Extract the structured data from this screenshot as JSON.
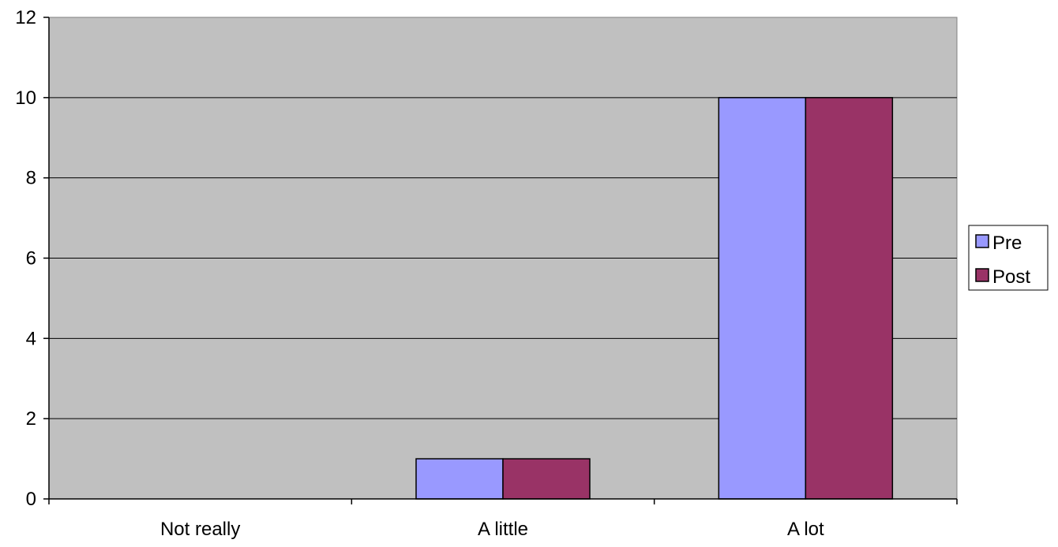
{
  "chart_data": {
    "type": "bar",
    "categories": [
      "Not really",
      "A little",
      "A lot"
    ],
    "series": [
      {
        "name": "Pre",
        "values": [
          0,
          1,
          10
        ],
        "color": "#9999ff"
      },
      {
        "name": "Post",
        "values": [
          0,
          1,
          10
        ],
        "color": "#993366"
      }
    ],
    "ylim": [
      0,
      12
    ],
    "yticks": [
      0,
      2,
      4,
      6,
      8,
      10,
      12
    ],
    "grid": true,
    "plot_background": "#c0c0c0",
    "legend_position": "right"
  }
}
